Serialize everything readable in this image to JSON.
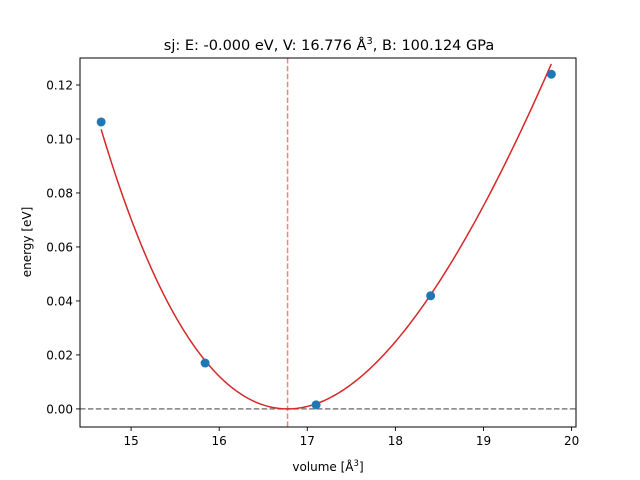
{
  "chart_data": {
    "type": "scatter",
    "title_prefix": "sj: E: -0.000 eV, V: 16.776 Å",
    "title_sup": "3",
    "title_suffix": ", B: 100.124 GPa",
    "xlabel": "volume [Å",
    "xlabel_sup": "3",
    "xlabel_end": "]",
    "ylabel": "energy [eV]",
    "xlim": [
      14.42,
      20.05
    ],
    "ylim": [
      -0.0067,
      0.13
    ],
    "xticks": [
      15,
      16,
      17,
      18,
      19,
      20
    ],
    "xtick_labels": [
      "15",
      "16",
      "17",
      "18",
      "19",
      "20"
    ],
    "yticks": [
      0.0,
      0.02,
      0.04,
      0.06,
      0.08,
      0.1,
      0.12
    ],
    "ytick_labels": [
      "0.00",
      "0.02",
      "0.04",
      "0.06",
      "0.08",
      "0.10",
      "0.12"
    ],
    "points": {
      "x": [
        14.66,
        15.84,
        17.1,
        18.4,
        19.77
      ],
      "y": [
        0.1063,
        0.017,
        0.0015,
        0.0419,
        0.124
      ],
      "color": "#1f77b4"
    },
    "fit": {
      "E0": 0.0,
      "V0": 16.776,
      "B_GPa": 100.124,
      "color": "#d62728"
    },
    "vline": {
      "x": 16.776,
      "color": "#ff7f7f"
    },
    "hline": {
      "y": 0.0,
      "color": "#7f7f7f"
    },
    "grid": false,
    "legend": "none"
  }
}
